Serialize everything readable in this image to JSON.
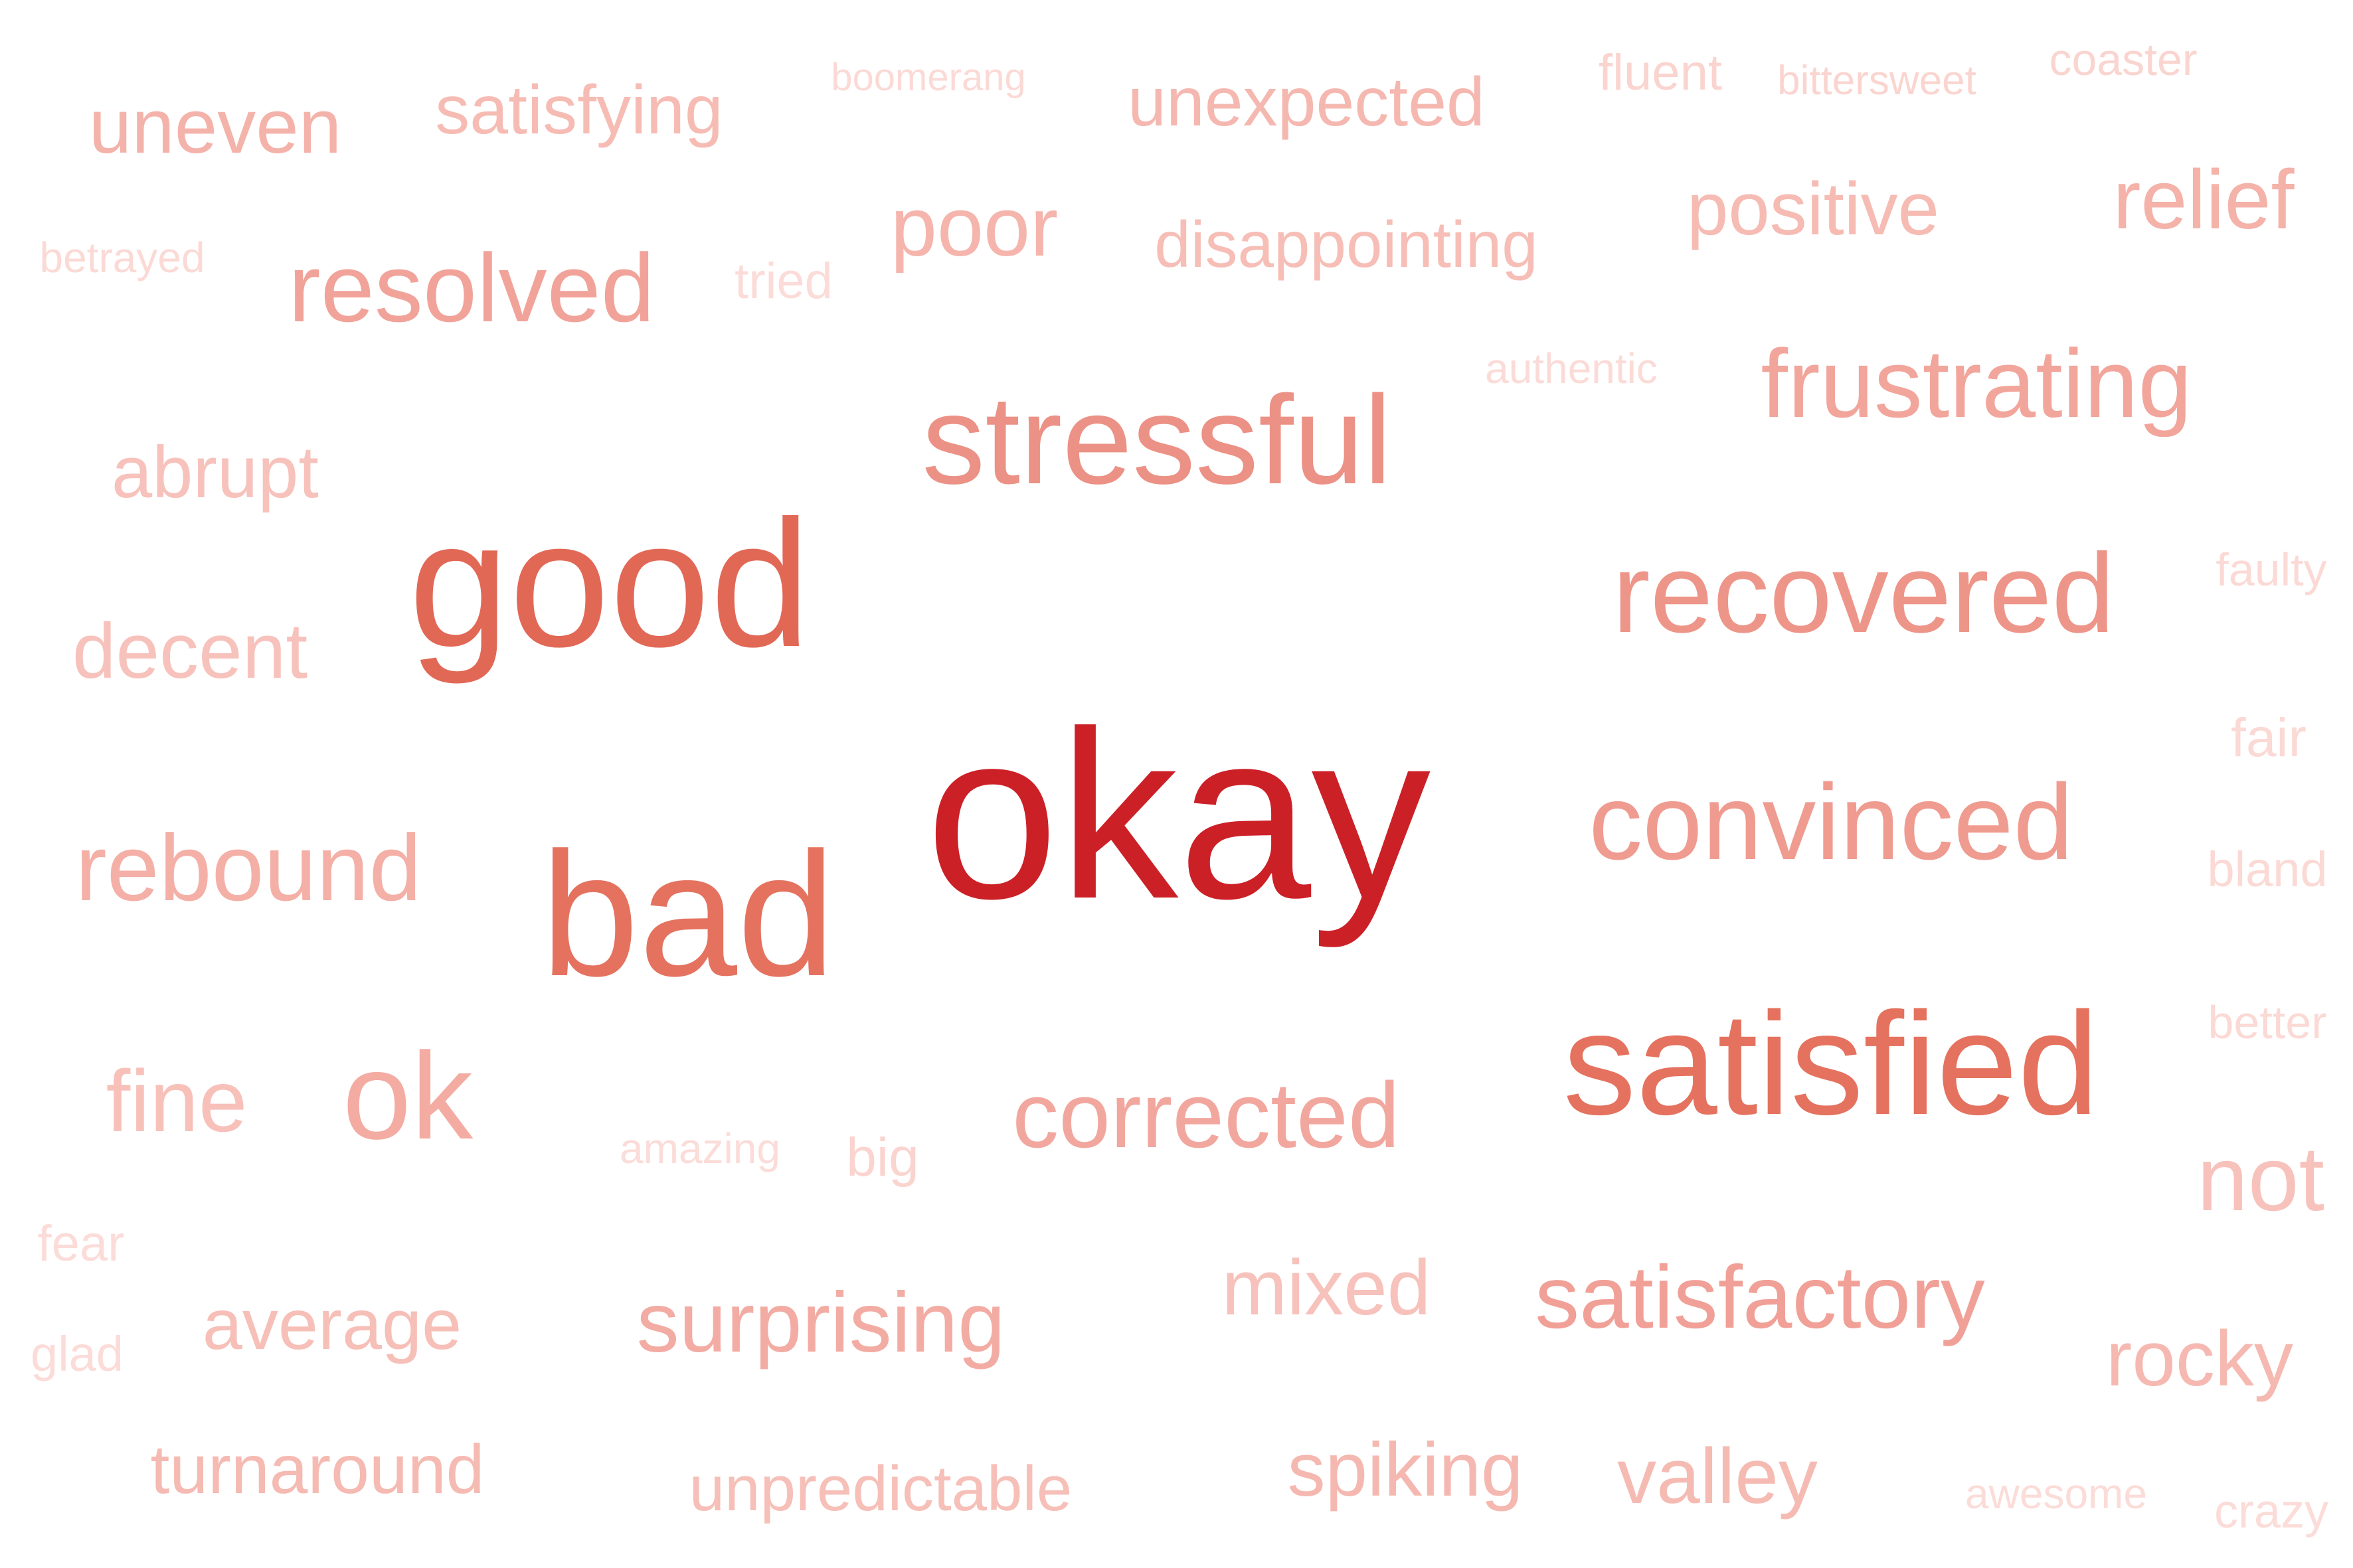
{
  "words": [
    {
      "text": "okay",
      "color": "#cc2027"
    },
    {
      "text": "good",
      "color": "#e26856"
    },
    {
      "text": "bad",
      "color": "#e4725f"
    },
    {
      "text": "satisfied",
      "color": "#e4725f"
    },
    {
      "text": "stressful",
      "color": "#ec9185"
    },
    {
      "text": "recovered",
      "color": "#ee9589"
    },
    {
      "text": "convinced",
      "color": "#f09b90"
    },
    {
      "text": "ok",
      "color": "#f3aba2"
    },
    {
      "text": "satisfactory",
      "color": "#f1a097"
    },
    {
      "text": "frustrating",
      "color": "#f2a59b"
    },
    {
      "text": "corrected",
      "color": "#f2a79e"
    },
    {
      "text": "resolved",
      "color": "#f1a39a"
    },
    {
      "text": "surprising",
      "color": "#f3aca3"
    },
    {
      "text": "rebound",
      "color": "#f4b0a7"
    },
    {
      "text": "poor",
      "color": "#f5b5ad"
    },
    {
      "text": "positive",
      "color": "#f6bbb3"
    },
    {
      "text": "relief",
      "color": "#f4b2a9"
    },
    {
      "text": "uneven",
      "color": "#f4b3aa"
    },
    {
      "text": "satisfying",
      "color": "#f6bcb4"
    },
    {
      "text": "unexpected",
      "color": "#f5b8b0"
    },
    {
      "text": "disappointing",
      "color": "#f6beb6"
    },
    {
      "text": "abrupt",
      "color": "#f7c2bb"
    },
    {
      "text": "decent",
      "color": "#f7c2bb"
    },
    {
      "text": "fine",
      "color": "#f7c1ba"
    },
    {
      "text": "not",
      "color": "#f7c2bb"
    },
    {
      "text": "mixed",
      "color": "#f7c2bb"
    },
    {
      "text": "average",
      "color": "#f6bfb7"
    },
    {
      "text": "rocky",
      "color": "#f5b9b1"
    },
    {
      "text": "turnaround",
      "color": "#f5bab2"
    },
    {
      "text": "spiking",
      "color": "#f5b8b0"
    },
    {
      "text": "valley",
      "color": "#f5bbb3"
    },
    {
      "text": "unpredictable",
      "color": "#f6bfb8"
    },
    {
      "text": "tried",
      "color": "#fbdcd8"
    },
    {
      "text": "big",
      "color": "#fad4cf"
    },
    {
      "text": "fluent",
      "color": "#fad4cf"
    },
    {
      "text": "coaster",
      "color": "#fad5d0"
    },
    {
      "text": "bittersweet",
      "color": "#fad5d0"
    },
    {
      "text": "boomerang",
      "color": "#fbdad6"
    },
    {
      "text": "betrayed",
      "color": "#fbdad6"
    },
    {
      "text": "authentic",
      "color": "#fbdbd7"
    },
    {
      "text": "faulty",
      "color": "#fbdad6"
    },
    {
      "text": "fair",
      "color": "#fbd9d5"
    },
    {
      "text": "bland",
      "color": "#fbd9d5"
    },
    {
      "text": "better",
      "color": "#fbd9d5"
    },
    {
      "text": "amazing",
      "color": "#fbdcd8"
    },
    {
      "text": "fear",
      "color": "#fbdcd8"
    },
    {
      "text": "glad",
      "color": "#fbdcd8"
    },
    {
      "text": "awesome",
      "color": "#fbdcd8"
    },
    {
      "text": "crazy",
      "color": "#fbdcd8"
    }
  ]
}
